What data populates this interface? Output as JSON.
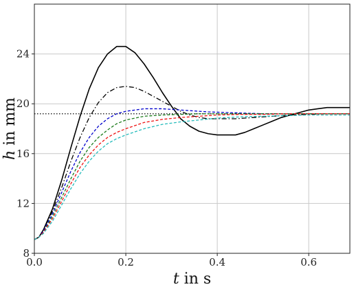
{
  "chart_data": {
    "type": "line",
    "xlabel": {
      "var": "t",
      "rest": " in s"
    },
    "ylabel": {
      "var": "h",
      "rest": " in mm"
    },
    "xlim": [
      0,
      0.69
    ],
    "ylim": [
      8,
      28
    ],
    "xticks": [
      0.0,
      0.2,
      0.4,
      0.6
    ],
    "xtick_labels": [
      "0.0",
      "0.2",
      "0.4",
      "0.6"
    ],
    "yticks": [
      8,
      12,
      16,
      20,
      24
    ],
    "ytick_labels": [
      "8",
      "12",
      "16",
      "20",
      "24"
    ],
    "grid": true,
    "reference_line": {
      "y": 19.2,
      "style": "dotted",
      "color": "#000000"
    },
    "series": [
      {
        "style": "solid",
        "color": "#000000",
        "x": [
          0,
          0.01,
          0.02,
          0.04,
          0.06,
          0.08,
          0.1,
          0.12,
          0.14,
          0.16,
          0.18,
          0.2,
          0.22,
          0.24,
          0.26,
          0.28,
          0.3,
          0.32,
          0.34,
          0.36,
          0.38,
          0.4,
          0.42,
          0.44,
          0.46,
          0.48,
          0.5,
          0.52,
          0.54,
          0.56,
          0.58,
          0.6,
          0.62,
          0.64,
          0.66,
          0.69
        ],
        "y": [
          9.1,
          9.3,
          9.9,
          11.6,
          13.9,
          16.5,
          19.0,
          21.2,
          22.9,
          24.0,
          24.6,
          24.6,
          24.1,
          23.2,
          22.1,
          20.9,
          19.8,
          18.8,
          18.2,
          17.8,
          17.6,
          17.5,
          17.5,
          17.5,
          17.7,
          18.0,
          18.3,
          18.6,
          18.9,
          19.1,
          19.3,
          19.5,
          19.6,
          19.7,
          19.7,
          19.7
        ]
      },
      {
        "style": "dashdot",
        "color": "#000000",
        "x": [
          0,
          0.01,
          0.02,
          0.04,
          0.06,
          0.08,
          0.1,
          0.12,
          0.14,
          0.16,
          0.18,
          0.2,
          0.22,
          0.24,
          0.26,
          0.28,
          0.3,
          0.32,
          0.34,
          0.36,
          0.38,
          0.4,
          0.44,
          0.48,
          0.52,
          0.56,
          0.6,
          0.64,
          0.69
        ],
        "y": [
          9.1,
          9.3,
          9.9,
          11.4,
          13.3,
          15.4,
          17.3,
          18.9,
          20.1,
          20.9,
          21.3,
          21.4,
          21.3,
          21.0,
          20.6,
          20.2,
          19.8,
          19.4,
          19.1,
          18.9,
          18.8,
          18.8,
          18.8,
          18.9,
          19.0,
          19.1,
          19.15,
          19.2,
          19.2
        ]
      },
      {
        "style": "dashed",
        "color": "#0000cc",
        "x": [
          0,
          0.01,
          0.02,
          0.04,
          0.06,
          0.08,
          0.1,
          0.12,
          0.14,
          0.16,
          0.18,
          0.2,
          0.22,
          0.24,
          0.26,
          0.28,
          0.3,
          0.34,
          0.38,
          0.42,
          0.46,
          0.5,
          0.55,
          0.6,
          0.65,
          0.69
        ],
        "y": [
          9.1,
          9.3,
          9.8,
          11.2,
          12.9,
          14.6,
          16.1,
          17.3,
          18.2,
          18.8,
          19.2,
          19.4,
          19.5,
          19.6,
          19.6,
          19.6,
          19.55,
          19.45,
          19.35,
          19.3,
          19.25,
          19.2,
          19.2,
          19.2,
          19.2,
          19.2
        ]
      },
      {
        "style": "dashed",
        "color": "#1a7a1a",
        "x": [
          0,
          0.01,
          0.02,
          0.04,
          0.06,
          0.08,
          0.1,
          0.12,
          0.14,
          0.16,
          0.18,
          0.2,
          0.24,
          0.28,
          0.32,
          0.36,
          0.4,
          0.45,
          0.5,
          0.55,
          0.6,
          0.65,
          0.69
        ],
        "y": [
          9.1,
          9.3,
          9.7,
          11.0,
          12.5,
          14.0,
          15.4,
          16.5,
          17.3,
          17.9,
          18.4,
          18.7,
          19.0,
          19.1,
          19.15,
          19.2,
          19.2,
          19.2,
          19.2,
          19.2,
          19.2,
          19.2,
          19.2
        ]
      },
      {
        "style": "dashed",
        "color": "#ee1111",
        "x": [
          0,
          0.01,
          0.02,
          0.04,
          0.06,
          0.08,
          0.1,
          0.12,
          0.14,
          0.16,
          0.18,
          0.2,
          0.24,
          0.28,
          0.32,
          0.36,
          0.4,
          0.45,
          0.5,
          0.55,
          0.6,
          0.65,
          0.69
        ],
        "y": [
          9.1,
          9.3,
          9.7,
          10.8,
          12.2,
          13.6,
          14.9,
          15.9,
          16.7,
          17.3,
          17.7,
          18.0,
          18.5,
          18.75,
          18.9,
          19.0,
          19.1,
          19.15,
          19.15,
          19.2,
          19.2,
          19.2,
          19.2
        ]
      },
      {
        "style": "dashed",
        "color": "#22bbbb",
        "x": [
          0,
          0.01,
          0.02,
          0.04,
          0.06,
          0.08,
          0.1,
          0.12,
          0.14,
          0.16,
          0.18,
          0.2,
          0.24,
          0.28,
          0.32,
          0.36,
          0.4,
          0.45,
          0.5,
          0.55,
          0.6,
          0.65,
          0.69
        ],
        "y": [
          9.1,
          9.3,
          9.6,
          10.6,
          11.9,
          13.2,
          14.4,
          15.4,
          16.2,
          16.8,
          17.2,
          17.5,
          18.0,
          18.35,
          18.55,
          18.7,
          18.85,
          18.95,
          19.0,
          19.05,
          19.1,
          19.1,
          19.1
        ]
      }
    ]
  }
}
